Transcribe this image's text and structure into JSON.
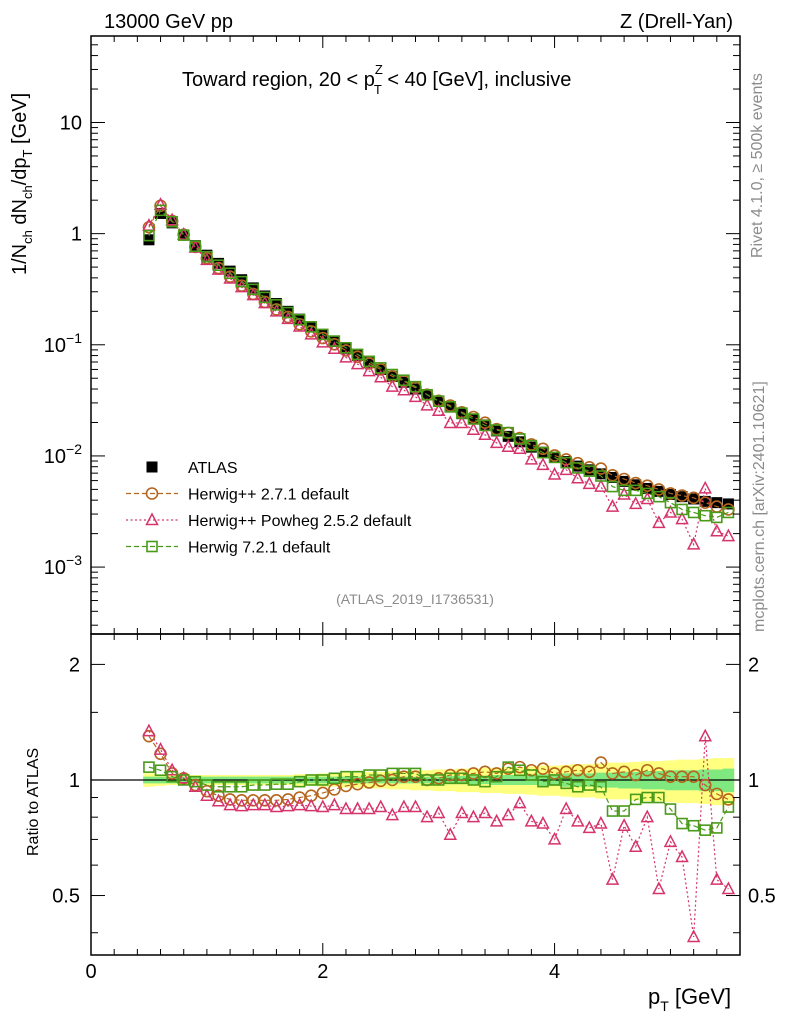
{
  "header": {
    "left": "13000 GeV pp",
    "right": "Z (Drell-Yan)"
  },
  "plot_title": {
    "prefix": "Toward region, 20 < p",
    "sup": "Z",
    "sub": "T",
    "suffix": " < 40 [GeV], inclusive"
  },
  "side_text": {
    "rivet": "Rivet 4.1.0, ≥ 500k events",
    "mcplots": "mcplots.cern.ch [arXiv:2401.10621]"
  },
  "analysis_id": "(ATLAS_2019_I1736531)",
  "y_label_main": {
    "p1": "1/N",
    "s1": "ch",
    "p2": " dN",
    "s2": "ch",
    "p3": "/dp",
    "s3": "T",
    "p4": " [GeV]"
  },
  "y_label_ratio": "Ratio to ATLAS",
  "x_label": {
    "p1": "p",
    "s1": "T",
    "p2": " [GeV]"
  },
  "main_ticks": [
    {
      "base": "10",
      "exp": "−3",
      "value": 0.001
    },
    {
      "base": "10",
      "exp": "−2",
      "value": 0.01
    },
    {
      "base": "10",
      "exp": "−1",
      "value": 0.1
    },
    {
      "base": "1",
      "exp": "",
      "value": 1
    },
    {
      "base": "10",
      "exp": "",
      "value": 10
    }
  ],
  "ratio_ticks": [
    {
      "label": "0.5",
      "value": 0.5
    },
    {
      "label": "1",
      "value": 1
    },
    {
      "label": "2",
      "value": 2
    }
  ],
  "x_ticks": [
    {
      "label": "0",
      "value": 0
    },
    {
      "label": "2",
      "value": 2
    },
    {
      "label": "4",
      "value": 4
    }
  ],
  "legend": [
    {
      "label": "ATLAS",
      "color": "#000000",
      "marker": "filled-square",
      "style": "none"
    },
    {
      "label": "Herwig++ 2.7.1 default",
      "color": "#b5651d",
      "marker": "open-circle",
      "style": "dashed"
    },
    {
      "label": "Herwig++ Powheg 2.5.2 default",
      "color": "#d6336c",
      "marker": "open-triangle",
      "style": "dotted"
    },
    {
      "label": "Herwig 7.2.1 default",
      "color": "#4a9a1a",
      "marker": "open-square",
      "style": "dashed"
    }
  ],
  "chart_data": {
    "type": "scatter",
    "title": "Toward region, 20 < pT^Z < 40 [GeV], inclusive",
    "xlabel": "pT [GeV]",
    "ylabel": "1/Nch dNch/dpT [GeV]",
    "ratio_ylabel": "Ratio to ATLAS",
    "xlim": [
      0,
      5.6
    ],
    "ylim": [
      0.00025,
      60
    ],
    "ratio_ylim": [
      0.35,
      2.4
    ],
    "yscale": "log",
    "x": [
      0.5,
      0.6,
      0.7,
      0.8,
      0.9,
      1.0,
      1.1,
      1.2,
      1.3,
      1.4,
      1.5,
      1.6,
      1.7,
      1.8,
      1.9,
      2.0,
      2.1,
      2.2,
      2.3,
      2.4,
      2.5,
      2.6,
      2.7,
      2.8,
      2.9,
      3.0,
      3.1,
      3.2,
      3.3,
      3.4,
      3.5,
      3.6,
      3.7,
      3.8,
      3.9,
      4.0,
      4.1,
      4.2,
      4.3,
      4.4,
      4.5,
      4.6,
      4.7,
      4.8,
      4.9,
      5.0,
      5.1,
      5.2,
      5.3,
      5.4,
      5.5
    ],
    "series": [
      {
        "name": "ATLAS",
        "values": [
          0.88,
          1.52,
          1.25,
          0.97,
          0.78,
          0.64,
          0.54,
          0.46,
          0.385,
          0.325,
          0.275,
          0.235,
          0.2,
          0.17,
          0.145,
          0.124,
          0.107,
          0.092,
          0.08,
          0.069,
          0.06,
          0.052,
          0.046,
          0.04,
          0.0355,
          0.031,
          0.0275,
          0.024,
          0.0215,
          0.019,
          0.0168,
          0.015,
          0.0134,
          0.012,
          0.0108,
          0.0097,
          0.0089,
          0.0081,
          0.0075,
          0.0069,
          0.0064,
          0.0059,
          0.0055,
          0.0051,
          0.0048,
          0.0045,
          0.0043,
          0.0041,
          0.0039,
          0.0038,
          0.0037
        ]
      },
      {
        "name": "Herwig++ 2.7.1 default",
        "values": [
          1.14,
          1.78,
          1.3,
          0.98,
          0.76,
          0.6,
          0.49,
          0.41,
          0.34,
          0.287,
          0.243,
          0.208,
          0.178,
          0.153,
          0.132,
          0.115,
          0.101,
          0.089,
          0.078,
          0.068,
          0.06,
          0.052,
          0.047,
          0.041,
          0.0356,
          0.0313,
          0.0284,
          0.0247,
          0.0224,
          0.0199,
          0.0174,
          0.0161,
          0.0145,
          0.0127,
          0.0116,
          0.0101,
          0.0093,
          0.0086,
          0.0079,
          0.0077,
          0.0067,
          0.0062,
          0.0057,
          0.0054,
          0.005,
          0.0046,
          0.0044,
          0.0042,
          0.0038,
          0.0035,
          0.0033
        ]
      },
      {
        "name": "Herwig++ Powheg 2.5.2 default",
        "values": [
          1.18,
          1.82,
          1.32,
          0.98,
          0.75,
          0.58,
          0.475,
          0.395,
          0.33,
          0.28,
          0.237,
          0.2,
          0.171,
          0.146,
          0.124,
          0.105,
          0.092,
          0.077,
          0.067,
          0.058,
          0.051,
          0.042,
          0.039,
          0.034,
          0.0285,
          0.0255,
          0.0198,
          0.0198,
          0.0172,
          0.0155,
          0.0131,
          0.0121,
          0.0116,
          0.0093,
          0.0083,
          0.0068,
          0.0075,
          0.0063,
          0.0056,
          0.0053,
          0.0035,
          0.0045,
          0.0037,
          0.0041,
          0.0025,
          0.0031,
          0.0027,
          0.0016,
          0.0051,
          0.0021,
          0.0019
        ]
      },
      {
        "name": "Herwig 7.2.1 default",
        "values": [
          0.96,
          1.62,
          1.28,
          0.97,
          0.77,
          0.62,
          0.52,
          0.44,
          0.37,
          0.315,
          0.267,
          0.229,
          0.195,
          0.168,
          0.145,
          0.124,
          0.108,
          0.094,
          0.082,
          0.071,
          0.062,
          0.054,
          0.048,
          0.042,
          0.0355,
          0.0311,
          0.0277,
          0.0243,
          0.0215,
          0.0188,
          0.0171,
          0.0162,
          0.0142,
          0.0124,
          0.0107,
          0.0097,
          0.0087,
          0.0078,
          0.0073,
          0.0066,
          0.0053,
          0.0049,
          0.0049,
          0.0046,
          0.0043,
          0.0038,
          0.0033,
          0.0031,
          0.0029,
          0.0028,
          0.0031
        ]
      }
    ],
    "ratio_series": [
      {
        "name": "Herwig++ 2.7.1 default",
        "values": [
          1.3,
          1.17,
          1.04,
          1.01,
          0.97,
          0.935,
          0.91,
          0.89,
          0.885,
          0.885,
          0.885,
          0.885,
          0.89,
          0.9,
          0.91,
          0.925,
          0.945,
          0.965,
          0.975,
          0.985,
          0.995,
          1.0,
          1.02,
          1.02,
          1.0,
          1.01,
          1.03,
          1.03,
          1.04,
          1.05,
          1.04,
          1.07,
          1.08,
          1.06,
          1.07,
          1.04,
          1.05,
          1.06,
          1.05,
          1.11,
          1.04,
          1.05,
          1.03,
          1.06,
          1.04,
          1.02,
          1.02,
          1.02,
          0.97,
          0.92,
          0.89
        ]
      },
      {
        "name": "Herwig++ Powheg 2.5.2 default",
        "values": [
          1.34,
          1.2,
          1.06,
          1.01,
          0.96,
          0.91,
          0.88,
          0.86,
          0.855,
          0.86,
          0.86,
          0.85,
          0.855,
          0.86,
          0.855,
          0.85,
          0.86,
          0.84,
          0.84,
          0.84,
          0.85,
          0.81,
          0.85,
          0.85,
          0.8,
          0.82,
          0.72,
          0.82,
          0.8,
          0.82,
          0.78,
          0.81,
          0.87,
          0.78,
          0.77,
          0.7,
          0.84,
          0.78,
          0.75,
          0.77,
          0.55,
          0.76,
          0.67,
          0.8,
          0.52,
          0.69,
          0.63,
          0.39,
          1.3,
          0.55,
          0.52
        ]
      },
      {
        "name": "Herwig 7.2.1 default",
        "values": [
          1.08,
          1.06,
          1.02,
          1.0,
          0.99,
          0.97,
          0.96,
          0.96,
          0.96,
          0.97,
          0.97,
          0.975,
          0.975,
          0.99,
          1.0,
          1.0,
          1.01,
          1.02,
          1.02,
          1.03,
          1.03,
          1.04,
          1.04,
          1.04,
          1.0,
          1.0,
          1.01,
          1.01,
          1.0,
          0.99,
          1.02,
          1.08,
          1.06,
          1.03,
          0.99,
          1.0,
          0.98,
          0.96,
          0.97,
          0.96,
          0.83,
          0.83,
          0.89,
          0.9,
          0.9,
          0.84,
          0.77,
          0.76,
          0.74,
          0.75,
          0.85
        ]
      }
    ],
    "ratio_band": {
      "stat_half_width": [
        0.02,
        0.02,
        0.02,
        0.02,
        0.02,
        0.02,
        0.02,
        0.02,
        0.02,
        0.02,
        0.02,
        0.02,
        0.02,
        0.02,
        0.02,
        0.02,
        0.02,
        0.02,
        0.02,
        0.02,
        0.02,
        0.02,
        0.02,
        0.02,
        0.02,
        0.02,
        0.025,
        0.025,
        0.025,
        0.025,
        0.03,
        0.03,
        0.03,
        0.03,
        0.035,
        0.035,
        0.04,
        0.04,
        0.04,
        0.045,
        0.045,
        0.05,
        0.05,
        0.055,
        0.055,
        0.06,
        0.06,
        0.06,
        0.065,
        0.065,
        0.07
      ],
      "total_half_width": [
        0.04,
        0.035,
        0.03,
        0.03,
        0.03,
        0.03,
        0.03,
        0.03,
        0.03,
        0.03,
        0.03,
        0.03,
        0.03,
        0.035,
        0.035,
        0.04,
        0.04,
        0.045,
        0.045,
        0.05,
        0.05,
        0.055,
        0.055,
        0.06,
        0.06,
        0.065,
        0.065,
        0.07,
        0.07,
        0.075,
        0.075,
        0.08,
        0.08,
        0.085,
        0.09,
        0.09,
        0.095,
        0.1,
        0.1,
        0.105,
        0.11,
        0.11,
        0.115,
        0.12,
        0.12,
        0.125,
        0.13,
        0.13,
        0.135,
        0.14,
        0.14
      ]
    }
  }
}
